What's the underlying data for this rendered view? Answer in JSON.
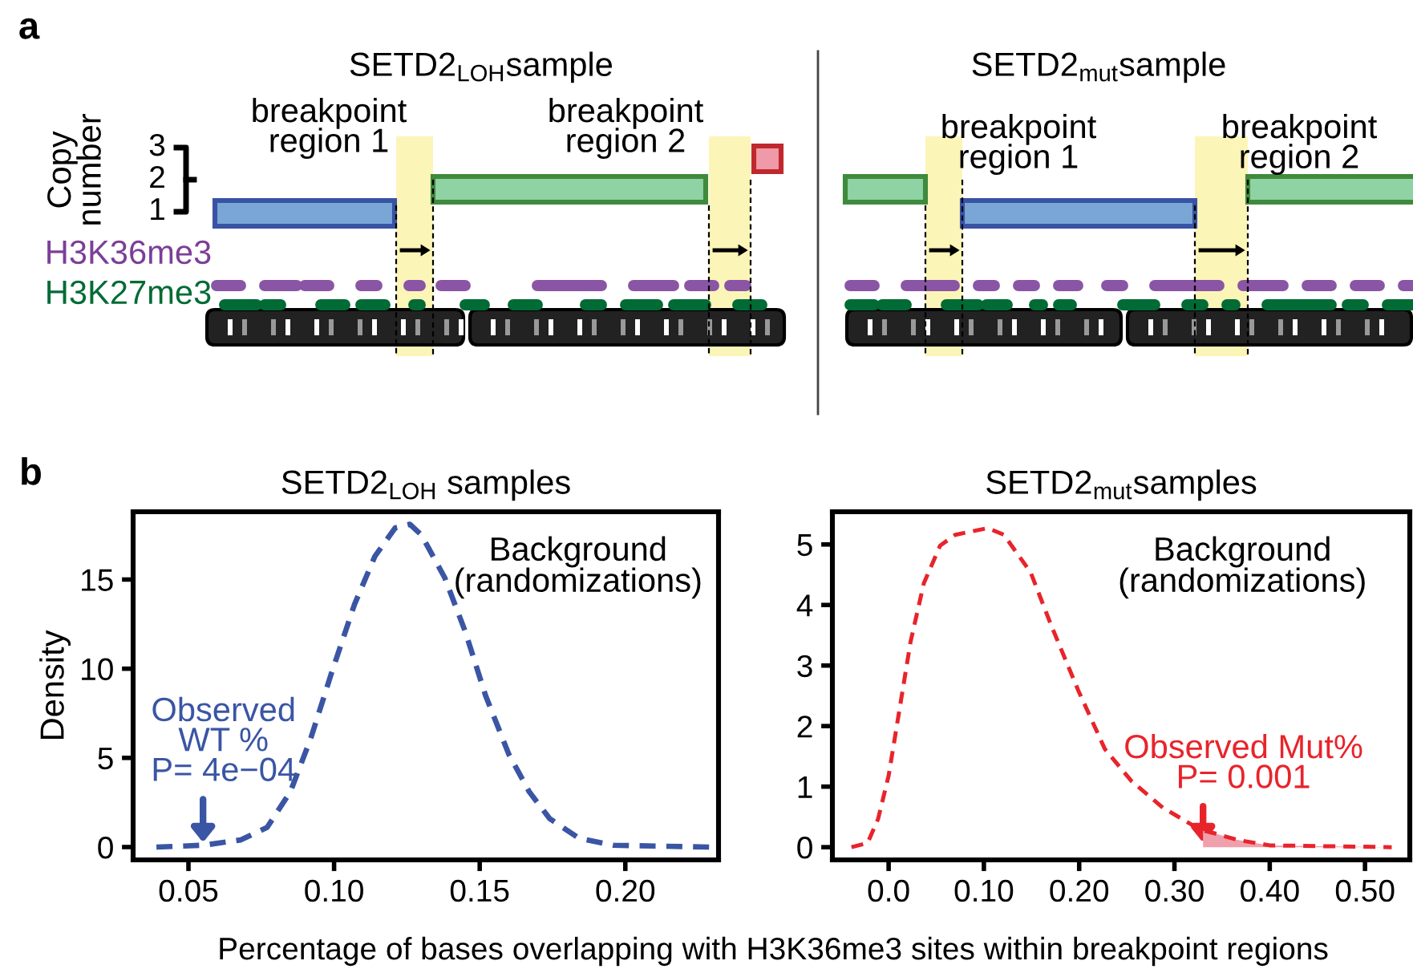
{
  "chart_data": [
    {
      "type": "other",
      "annotations": [
        "a",
        "SETD2$_{LOH}$sample",
        "SETD2$_{mut}$sample",
        "breakpoint\nregion 1",
        "breakpoint\nregion 2",
        "breakpoint\nregion 1",
        "breakpoint\nregion 2",
        "Copy\nnumber",
        "3",
        "2",
        "1",
        "H3K36me3",
        "H3K27me3"
      ]
    },
    {
      "type": "line",
      "title": "SETD2$_{LOH}$ samples",
      "ylabel": "Density",
      "xlabel": "Percentage of bases overlapping with H3K36me3 sites within breakpoint regions",
      "line_style": "dashed",
      "grid": false,
      "legend": false,
      "xlim": [
        0.031,
        0.232
      ],
      "ylim": [
        -0.72,
        18.8
      ],
      "xticks": [
        {
          "value": 0.05,
          "label": "0.05"
        },
        {
          "value": 0.1,
          "label": "0.10"
        },
        {
          "value": 0.15,
          "label": "0.15"
        },
        {
          "value": 0.2,
          "label": "0.20"
        }
      ],
      "yticks": [
        0,
        5,
        10,
        15
      ],
      "series": [
        {
          "color": "#3a55a4",
          "x": [
            0.039,
            0.055,
            0.068,
            0.077,
            0.085,
            0.092,
            0.099,
            0.107,
            0.114,
            0.121,
            0.126,
            0.13,
            0.138,
            0.145,
            0.152,
            0.16,
            0.167,
            0.174,
            0.184,
            0.196,
            0.229
          ],
          "values": [
            0,
            0.1,
            0.4,
            1.1,
            3.1,
            6.1,
            9.7,
            13.6,
            16.3,
            17.9,
            18.1,
            17.5,
            15.1,
            12.1,
            8.5,
            5.2,
            3.1,
            1.6,
            0.5,
            0.1,
            0
          ]
        }
      ],
      "annotations": [
        "b",
        "Background\n(randomizations)",
        {
          "text": "Observed\nWT %\nP= 4e−04",
          "x": 0.055,
          "y": 0
        }
      ]
    },
    {
      "type": "line",
      "title": "SETD2$_{mut}$samples",
      "line_style": "dashed",
      "grid": false,
      "legend": false,
      "xlim": [
        -0.059,
        0.547
      ],
      "ylim": [
        -0.21,
        5.54
      ],
      "xticks": [
        {
          "value": 0,
          "label": "0.0"
        },
        {
          "value": 0.1,
          "label": "0.10"
        },
        {
          "value": 0.2,
          "label": "0.20"
        },
        {
          "value": 0.3,
          "label": "0.30"
        },
        {
          "value": 0.4,
          "label": "0.40"
        },
        {
          "value": 0.5,
          "label": "0.50"
        }
      ],
      "yticks": [
        0,
        1,
        2,
        3,
        4,
        5
      ],
      "series": [
        {
          "color": "#e8242b",
          "x": [
            -0.039,
            -0.022,
            -0.011,
            0,
            0.012,
            0.023,
            0.037,
            0.054,
            0.07,
            0.104,
            0.121,
            0.149,
            0.171,
            0.199,
            0.227,
            0.255,
            0.288,
            0.327,
            0.344,
            0.366,
            0.4,
            0.528
          ],
          "values": [
            0,
            0.07,
            0.47,
            1.18,
            2.33,
            3.39,
            4.36,
            4.98,
            5.16,
            5.27,
            5.16,
            4.54,
            3.65,
            2.59,
            1.62,
            1.09,
            0.65,
            0.29,
            0.22,
            0.12,
            0.03,
            0
          ]
        },
        {
          "type": "area",
          "color": "#f0a0ad",
          "x": [
            0.33,
            0.344,
            0.366,
            0.4,
            0.528
          ],
          "values": [
            0.27,
            0.22,
            0.12,
            0.03,
            0
          ]
        }
      ],
      "annotations": [
        "Background\n(randomizations)",
        {
          "text": "Observed Mut%\nP= 0.001",
          "x": 0.33,
          "y": 0
        }
      ]
    }
  ]
}
